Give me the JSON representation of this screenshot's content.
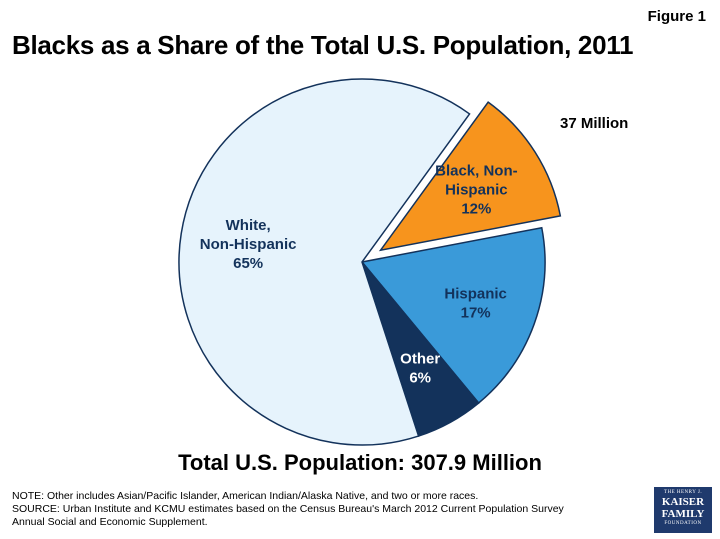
{
  "figure_label": "Figure 1",
  "callout": "37 Million",
  "total": "Total U.S. Population: 307.9 Million",
  "notes": {
    "note": "NOTE: Other includes Asian/Pacific Islander, American Indian/Alaska Native, and two or more races.",
    "source_line1": "SOURCE: Urban Institute and KCMU estimates based on the Census Bureau's March 2012 Current Population Survey",
    "source_line2": "Annual Social and Economic Supplement."
  },
  "logo": {
    "line1": "THE HENRY J.",
    "line2": "KAISER",
    "line3": "FAMILY",
    "line4": "FOUNDATION"
  },
  "chart_data": {
    "type": "pie",
    "title": "Blacks as a Share of the Total U.S. Population, 2011",
    "slices": [
      {
        "label": "Black, Non-Hispanic",
        "label_lines": [
          "Black, Non-",
          "Hispanic",
          "12%"
        ],
        "value": 12,
        "color": "#f7941d",
        "exploded": true
      },
      {
        "label": "Hispanic",
        "label_lines": [
          "Hispanic",
          "17%"
        ],
        "value": 17,
        "color": "#3a9ad9",
        "exploded": false
      },
      {
        "label": "Other",
        "label_lines": [
          "Other",
          "6%"
        ],
        "value": 6,
        "color": "#13325b",
        "exploded": false,
        "label_color": "#ffffff"
      },
      {
        "label": "White, Non-Hispanic",
        "label_lines": [
          "White,",
          "Non-Hispanic",
          "65%"
        ],
        "value": 65,
        "color": "#e6f3fc",
        "exploded": false
      }
    ]
  }
}
